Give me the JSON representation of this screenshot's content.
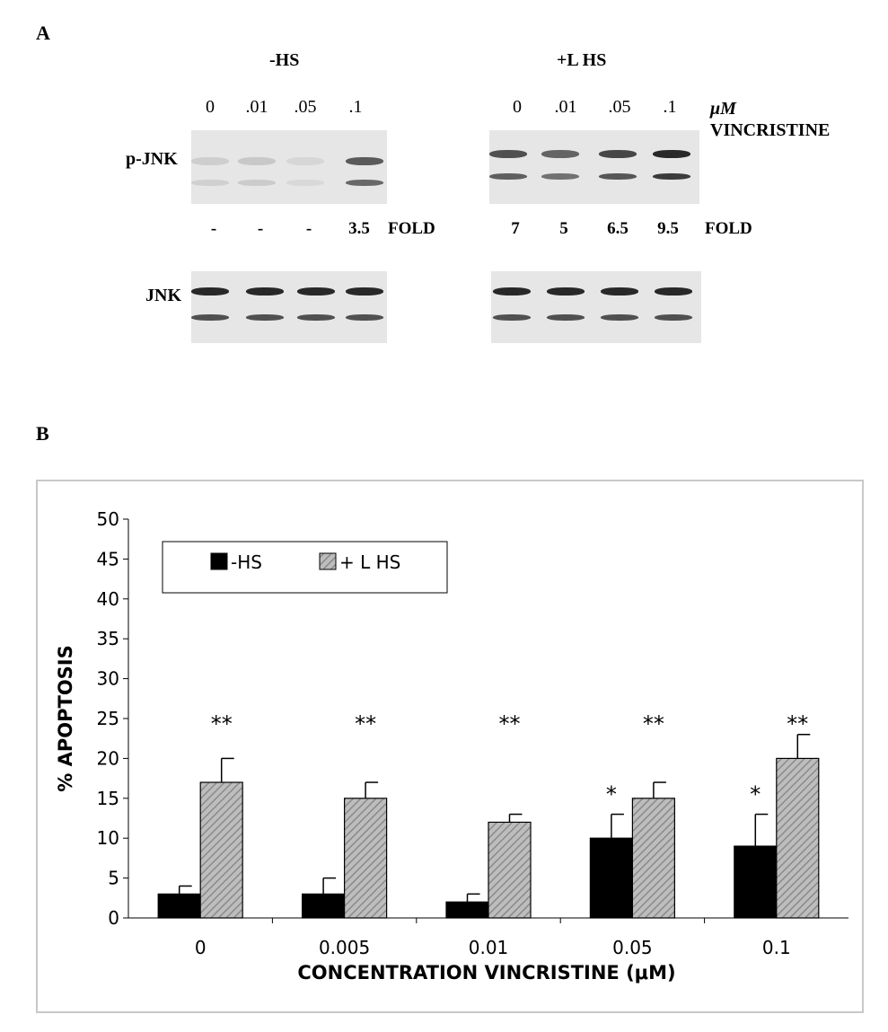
{
  "panel_a": {
    "letter": "A",
    "conditions": [
      "-HS",
      "+L HS"
    ],
    "lanes_left": [
      "0",
      ".01",
      ".05",
      ".1"
    ],
    "lanes_right": [
      "0",
      ".01",
      ".05",
      ".1"
    ],
    "unit_line1": "μM",
    "unit_line2": "VINCRISTINE",
    "rows": [
      "p-JNK",
      "JNK"
    ],
    "fold_left": [
      "-",
      "-",
      "-",
      "3.5"
    ],
    "fold_right": [
      "7",
      "5",
      "6.5",
      "9.5"
    ],
    "fold_word": "FOLD",
    "pjnk_left_intensity": [
      0.12,
      0.15,
      0.08,
      0.7
    ],
    "pjnk_right_intensity": [
      0.75,
      0.65,
      0.8,
      0.95
    ]
  },
  "panel_b": {
    "letter": "B"
  },
  "chart_data": {
    "type": "bar",
    "categories": [
      "0",
      "0.005",
      "0.01",
      "0.05",
      "0.1"
    ],
    "series": [
      {
        "name": "-HS",
        "values": [
          3,
          3,
          2,
          10,
          9
        ],
        "errors": [
          1,
          2,
          1,
          3,
          4
        ],
        "annotations": [
          "",
          "",
          "",
          "*",
          "*"
        ],
        "color": "#000000"
      },
      {
        "name": "+ L HS",
        "values": [
          17,
          15,
          12,
          15,
          20
        ],
        "errors": [
          3,
          2,
          1,
          2,
          3
        ],
        "annotations": [
          "**",
          "**",
          "**",
          "**",
          "**"
        ],
        "color": "#a8a8a8"
      }
    ],
    "ylabel": "% APOPTOSIS",
    "xlabel": "CONCENTRATION VINCRISTINE (μM)",
    "ylim": [
      0,
      50
    ],
    "yticks": [
      0,
      5,
      10,
      15,
      20,
      25,
      30,
      35,
      40,
      45,
      50
    ],
    "grid": false,
    "legend_position": "top-left"
  }
}
